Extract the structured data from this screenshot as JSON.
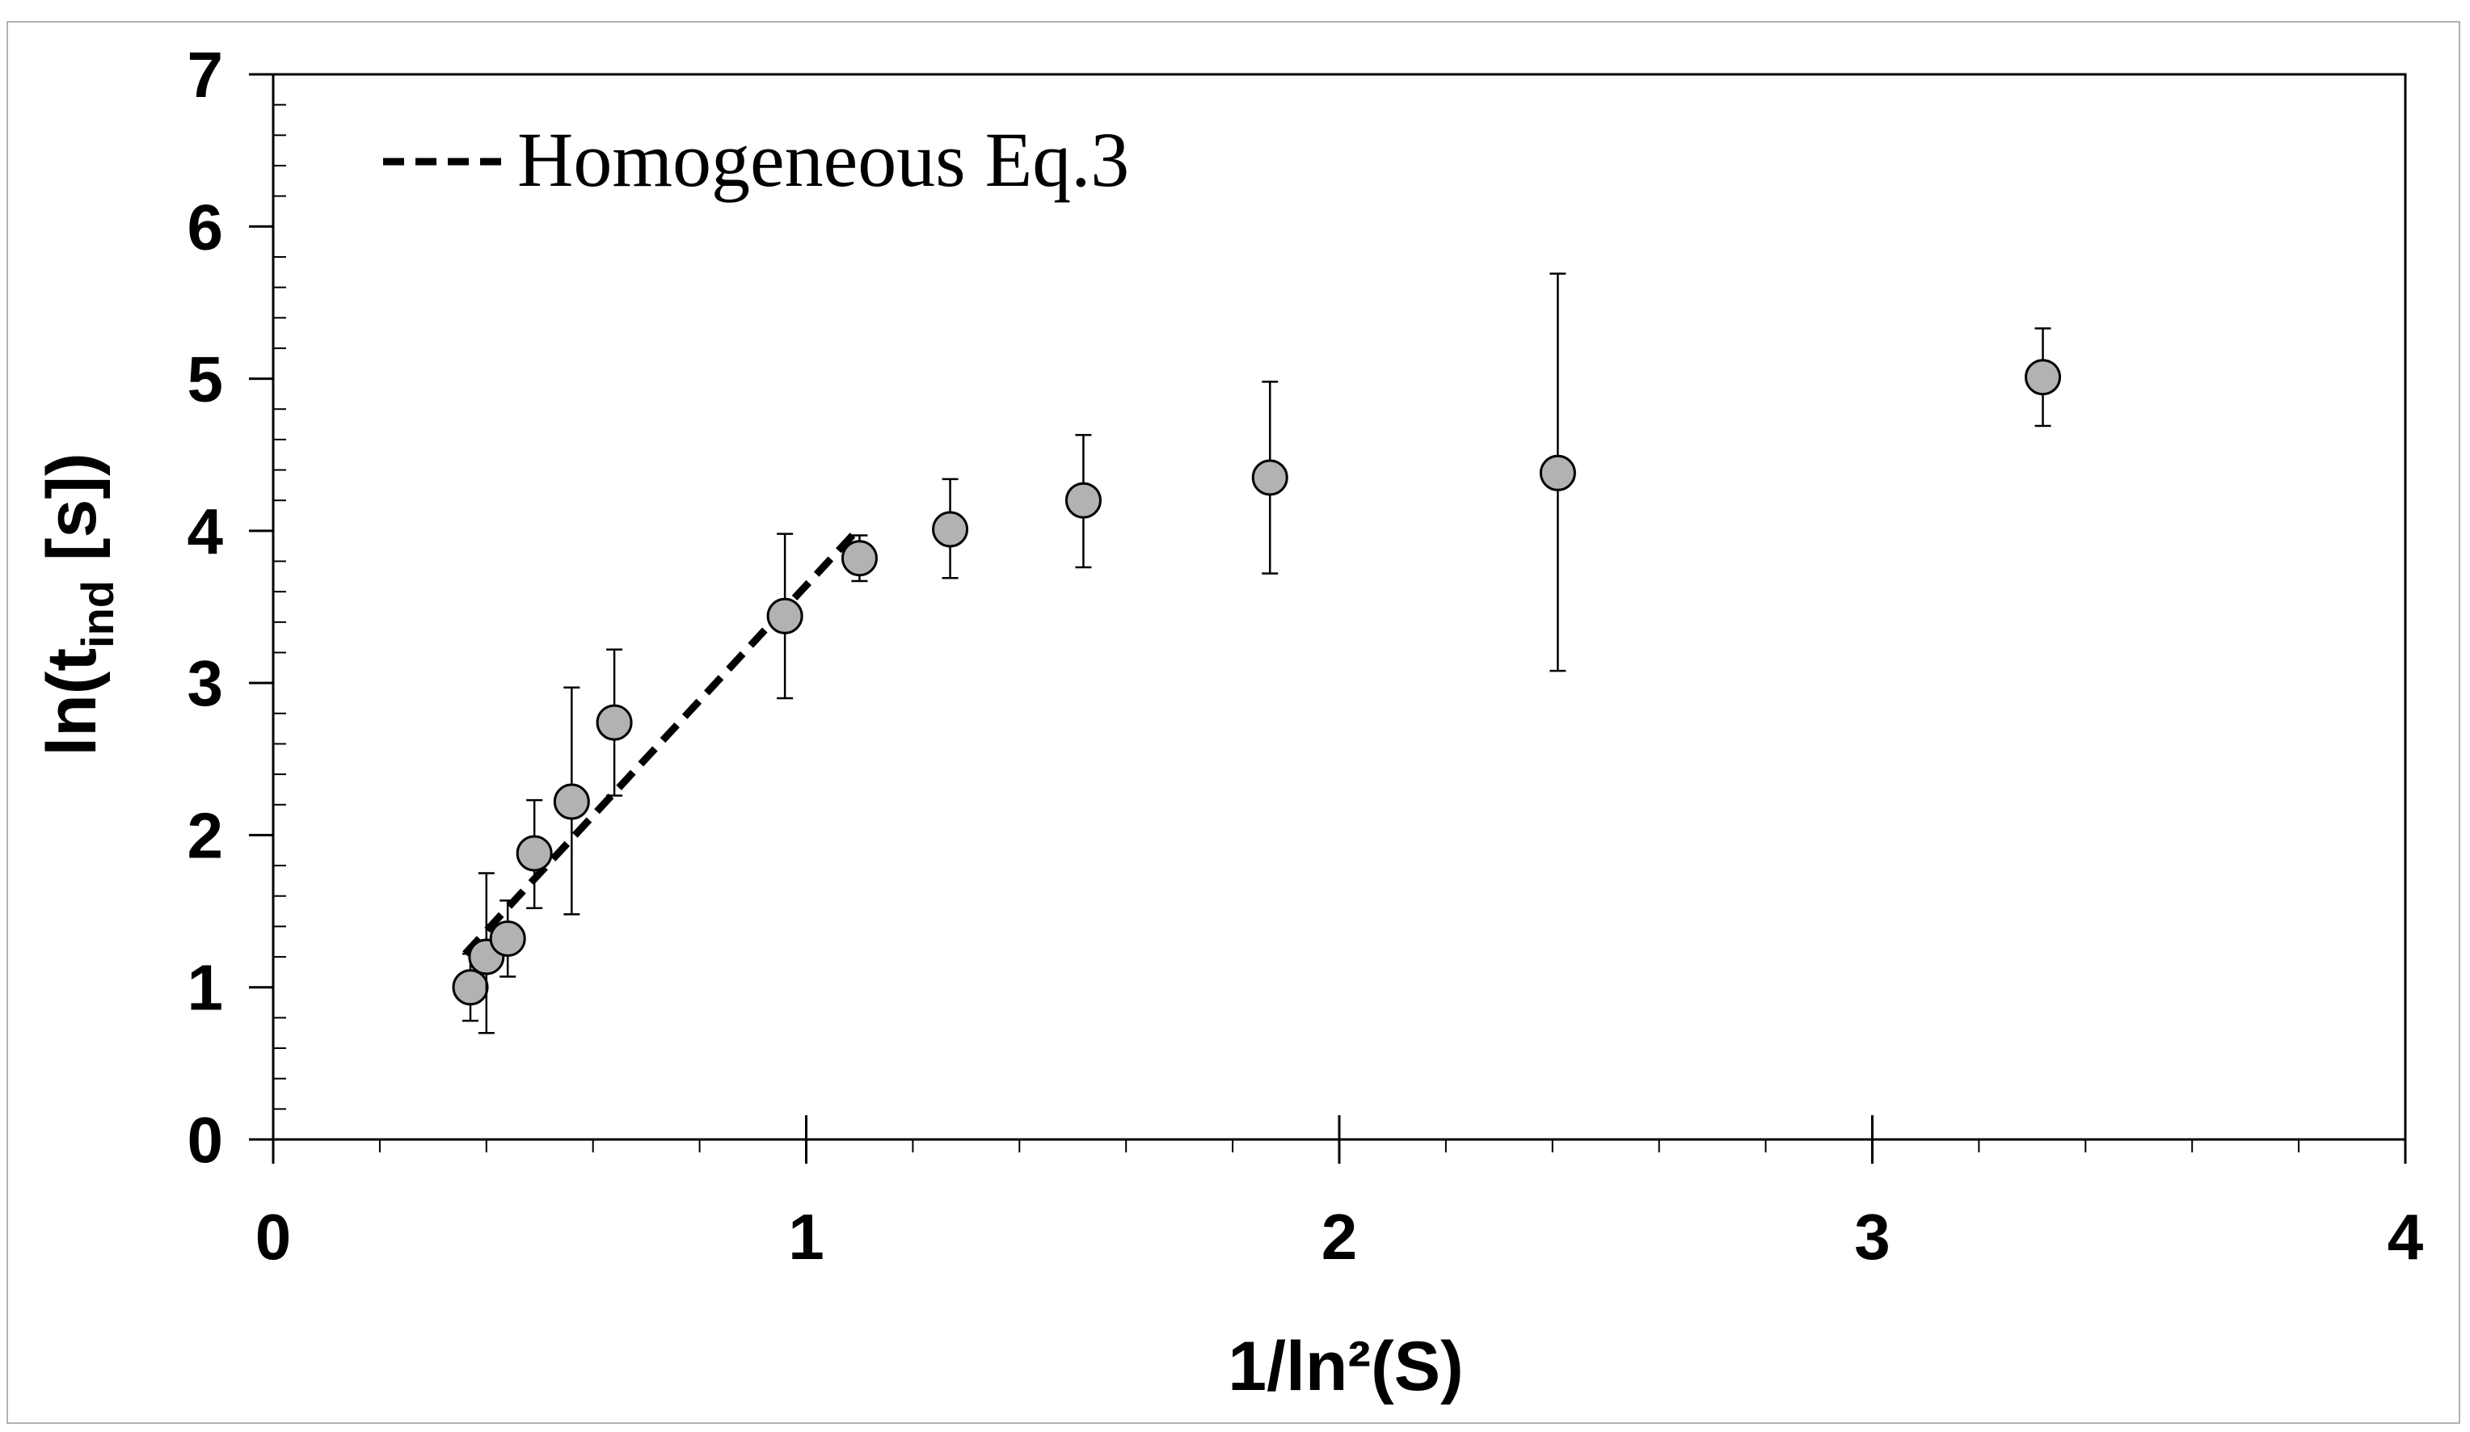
{
  "chart_data": {
    "type": "scatter",
    "title": "",
    "xlabel": "1/ln²(S)",
    "ylabel_parts": {
      "prefix": "ln(t",
      "subscript": "ind",
      "suffix": " [s])"
    },
    "xlim": [
      0,
      4
    ],
    "ylim": [
      0,
      7
    ],
    "x_ticks": [
      "0",
      "1",
      "2",
      "3",
      "4"
    ],
    "y_ticks": [
      "0",
      "1",
      "2",
      "3",
      "4",
      "5",
      "6",
      "7"
    ],
    "grid": false,
    "legend_position": "top-left",
    "marker_fill": "#b2b2b2",
    "series": [
      {
        "name": "",
        "kind": "points-with-error-bars",
        "points": [
          {
            "x": 0.37,
            "y": 1.0,
            "y_low": 0.78,
            "y_high": 1.22
          },
          {
            "x": 0.4,
            "y": 1.2,
            "y_low": 0.7,
            "y_high": 1.75
          },
          {
            "x": 0.44,
            "y": 1.32,
            "y_low": 1.07,
            "y_high": 1.57
          },
          {
            "x": 0.49,
            "y": 1.88,
            "y_low": 1.52,
            "y_high": 2.23
          },
          {
            "x": 0.56,
            "y": 2.22,
            "y_low": 1.48,
            "y_high": 2.97
          },
          {
            "x": 0.64,
            "y": 2.74,
            "y_low": 2.26,
            "y_high": 3.22
          },
          {
            "x": 0.96,
            "y": 3.44,
            "y_low": 2.9,
            "y_high": 3.98
          },
          {
            "x": 1.1,
            "y": 3.82,
            "y_low": 3.67,
            "y_high": 3.97
          },
          {
            "x": 1.27,
            "y": 4.01,
            "y_low": 3.69,
            "y_high": 4.34
          },
          {
            "x": 1.52,
            "y": 4.2,
            "y_low": 3.76,
            "y_high": 4.63
          },
          {
            "x": 1.87,
            "y": 4.35,
            "y_low": 3.72,
            "y_high": 4.98
          },
          {
            "x": 2.41,
            "y": 4.38,
            "y_low": 3.08,
            "y_high": 5.69
          },
          {
            "x": 3.32,
            "y": 5.01,
            "y_low": 4.69,
            "y_high": 5.33
          }
        ]
      },
      {
        "name": "Homogeneous Eq.3",
        "kind": "dashed-line",
        "points": [
          {
            "x": 0.36,
            "y": 1.22
          },
          {
            "x": 1.1,
            "y": 4.02
          }
        ]
      }
    ]
  }
}
